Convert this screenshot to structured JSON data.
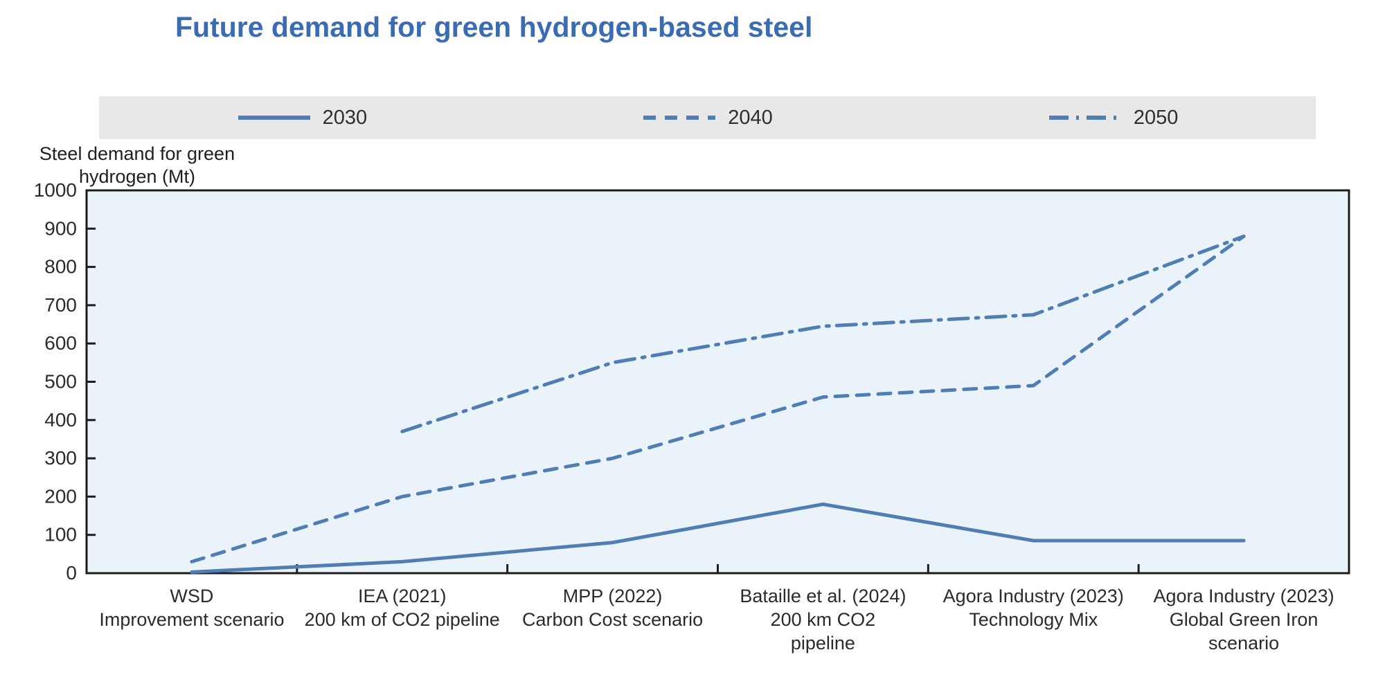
{
  "chart_data": {
    "type": "line",
    "title": "Future demand for green hydrogen-based steel",
    "ylabel": "Steel demand for green hydrogen (Mt)",
    "ylabel_lines": [
      "Steel demand for green",
      "hydrogen (Mt)"
    ],
    "xlabel": "",
    "ylim": [
      0,
      1000
    ],
    "ytick_step": 100,
    "grid": false,
    "legend_position": "top",
    "categories": [
      "WSD Improvement scenario",
      "IEA (2021) 200 km of CO2 pipeline",
      "MPP (2022) Carbon Cost scenario",
      "Bataille et al. (2024) 200 km CO2 pipeline",
      "Agora Industry (2023) Technology Mix",
      "Agora Industry (2023) Global Green Iron scenario"
    ],
    "category_lines": [
      [
        "WSD",
        "Improvement scenario"
      ],
      [
        "IEA (2021)",
        "200 km of CO2 pipeline"
      ],
      [
        "MPP (2022)",
        "Carbon Cost scenario"
      ],
      [
        "Bataille et al. (2024)",
        "200 km CO2",
        "pipeline"
      ],
      [
        "Agora Industry (2023)",
        "Technology Mix"
      ],
      [
        "Agora Industry (2023)",
        "Global Green Iron",
        "scenario"
      ]
    ],
    "series": [
      {
        "name": "2030",
        "style": "solid",
        "values": [
          3,
          30,
          80,
          180,
          85,
          85
        ]
      },
      {
        "name": "2040",
        "style": "dashed",
        "values": [
          30,
          200,
          300,
          460,
          490,
          880
        ]
      },
      {
        "name": "2050",
        "style": "dashdot",
        "values": [
          null,
          370,
          550,
          645,
          675,
          880
        ]
      }
    ],
    "colors": {
      "line": "#4f7db4",
      "title": "#3a6cb3",
      "plot_bg": "#eaf3fa",
      "legend_bg": "#e8e8e8",
      "axis": "#1c1c1c",
      "text": "#2b2b2b"
    }
  }
}
